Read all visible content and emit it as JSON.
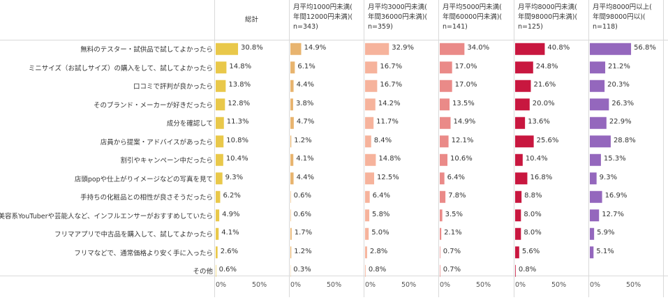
{
  "chart_data": {
    "type": "bar",
    "orientation": "horizontal",
    "categories": [
      "無料のテスター・試供品で試してよかったら",
      "ミニサイズ（お試しサイズ）の購入をして、試してよかったら",
      "口コミで評判が良かったら",
      "そのブランド・メーカーが好きだったら",
      "成分を確認して",
      "店員から提案・アドバイスがあったら",
      "割引やキャンペーン中だったら",
      "店頭popや仕上がりイメージなどの写真を見て",
      "手持ちの化粧品との相性が良さそうだったら",
      "美容系YouTuberや芸能人など、インフルエンサーがおすすめしていたら",
      "フリマアプリで中古品を購入して、試してよかったら",
      "フリマなどで、通常価格より安く手に入ったら",
      "その他"
    ],
    "series": [
      {
        "name": "総計",
        "color": "#e9c84a",
        "values": [
          30.8,
          14.8,
          13.8,
          12.8,
          11.3,
          10.8,
          10.4,
          9.3,
          6.2,
          4.9,
          4.1,
          2.6,
          0.6
        ]
      },
      {
        "name": "月平均1000円未満(年間12000円未満)(n=343)",
        "color": "#e8b46f",
        "values": [
          14.9,
          6.1,
          4.4,
          3.8,
          4.7,
          1.2,
          4.1,
          4.4,
          0.6,
          0.6,
          1.7,
          1.2,
          0.3
        ]
      },
      {
        "name": "月平均3000円未満(年間36000円未満)(n=359)",
        "color": "#f6b39c",
        "values": [
          32.9,
          16.7,
          16.7,
          14.2,
          11.7,
          8.4,
          14.8,
          12.5,
          6.4,
          5.8,
          5.0,
          2.8,
          0.8
        ]
      },
      {
        "name": "月平均5000円未満(年間60000円未満)(n=141)",
        "color": "#ea8a88",
        "values": [
          34.0,
          17.0,
          17.0,
          13.5,
          14.9,
          12.1,
          10.6,
          6.4,
          7.8,
          3.5,
          2.1,
          0.7,
          0.7
        ]
      },
      {
        "name": "月平均8000円未満(年間98000円未満)(n=125)",
        "color": "#c8173f",
        "values": [
          40.8,
          24.8,
          21.6,
          20.0,
          13.6,
          25.6,
          10.4,
          16.8,
          8.8,
          8.0,
          8.0,
          5.6,
          0.8
        ]
      },
      {
        "name": "月平均8000円以上(年間98000円以)(n=118)",
        "color": "#9467bd",
        "values": [
          56.8,
          21.2,
          20.3,
          26.3,
          22.9,
          28.8,
          15.3,
          9.3,
          16.9,
          12.7,
          5.9,
          5.1,
          0.0
        ]
      }
    ],
    "headers": [
      [
        "総計"
      ],
      [
        "月平均1000円未満(",
        "年間12000円未満)(",
        "n=343)"
      ],
      [
        "月平均3000円未満(",
        "年間36000円未満)(",
        "n=359)"
      ],
      [
        "月平均5000円未満(",
        "年間60000円未満)(",
        "n=141)"
      ],
      [
        "月平均8000円未満(",
        "年間98000円未満)(",
        "n=125)"
      ],
      [
        "月平均8000円以上(",
        "年間98000円以)(",
        "n=118)"
      ]
    ],
    "value_labels": [
      [
        "30.8%",
        "14.8%",
        "13.8%",
        "12.8%",
        "11.3%",
        "10.8%",
        "10.4%",
        "9.3%",
        "6.2%",
        "4.9%",
        "4.1%",
        "2.6%",
        "0.6%"
      ],
      [
        "14.9%",
        "6.1%",
        "4.4%",
        "3.8%",
        "4.7%",
        "1.2%",
        "4.1%",
        "4.4%",
        "0.6%",
        "0.6%",
        "1.7%",
        "1.2%",
        "0.3%"
      ],
      [
        "32.9%",
        "16.7%",
        "16.7%",
        "14.2%",
        "11.7%",
        "8.4%",
        "14.8%",
        "12.5%",
        "6.4%",
        "5.8%",
        "5.0%",
        "2.8%",
        "0.8%"
      ],
      [
        "34.0%",
        "17.0%",
        "17.0%",
        "13.5%",
        "14.9%",
        "12.1%",
        "10.6%",
        "6.4%",
        "7.8%",
        "3.5%",
        "2.1%",
        "0.7%",
        "0.7%"
      ],
      [
        "40.8%",
        "24.8%",
        "21.6%",
        "20.0%",
        "13.6%",
        "25.6%",
        "10.4%",
        "16.8%",
        "8.8%",
        "8.0%",
        "8.0%",
        "5.6%",
        "0.8%"
      ],
      [
        "56.8%",
        "21.2%",
        "20.3%",
        "26.3%",
        "22.9%",
        "28.8%",
        "15.3%",
        "9.3%",
        "16.9%",
        "12.7%",
        "5.9%",
        "5.1%",
        ""
      ]
    ],
    "x_ticks": [
      "0%",
      "50%"
    ],
    "xlim": [
      0,
      100
    ],
    "grid": true
  }
}
